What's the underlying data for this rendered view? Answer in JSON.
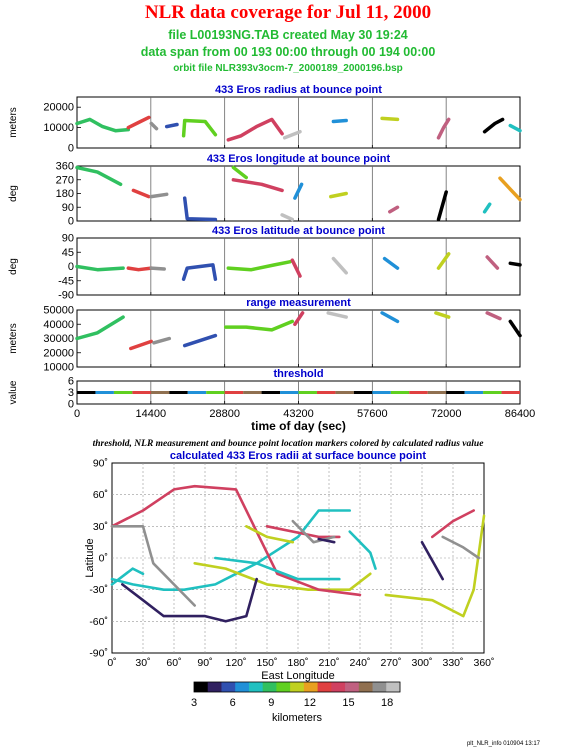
{
  "header": {
    "title": "NLR data coverage for Jul 11, 2000",
    "file_line": "file L00193NG.TAB created May 30 19:24",
    "span_line": "data span from 00 193 00:00 through 00 194 00:00",
    "orbit_line": "orbit file NLR393v3ocm-7_2000189_2000196.bsp"
  },
  "footer": "plt_NLR_info 010904 13:17",
  "colors": {
    "title": "#ff0000",
    "subtitle": "#22bb33",
    "panel_title": "#0000cc",
    "colorscale": [
      "#000000",
      "#302060",
      "#3050b0",
      "#2090d8",
      "#20c0c0",
      "#30c060",
      "#60d020",
      "#c0d020",
      "#e8a020",
      "#e04040",
      "#d04060",
      "#c06080",
      "#907050",
      "#909090",
      "#c0c0c0"
    ]
  },
  "shared_x": {
    "label": "time of day (sec)",
    "ticks": [
      "0",
      "14400",
      "28800",
      "43200",
      "57600",
      "72000",
      "86400"
    ],
    "range": [
      0,
      86400
    ]
  },
  "caption": "threshold, NLR measurement and bounce point location markers colored by calculated radius value",
  "chart_data": [
    {
      "type": "scatter",
      "title": "433 Eros radius at bounce point",
      "ylabel": "meters",
      "yticks": [
        "0",
        "10000",
        "20000"
      ],
      "ylim": [
        0,
        25000
      ],
      "segments": [
        {
          "x": [
            0,
            2500,
            5000,
            7500,
            10000
          ],
          "y": [
            12000,
            14000,
            10500,
            8500,
            9000
          ]
        },
        {
          "x": [
            10000,
            12000,
            14000
          ],
          "y": [
            10000,
            12500,
            15000
          ]
        },
        {
          "x": [
            14500,
            15500
          ],
          "y": [
            12000,
            9500
          ]
        },
        {
          "x": [
            17500,
            19500
          ],
          "y": [
            10500,
            11500
          ]
        },
        {
          "x": [
            20800,
            21000,
            25000,
            27000
          ],
          "y": [
            6000,
            13500,
            13000,
            6500
          ]
        },
        {
          "x": [
            29500,
            32000,
            35000,
            38000,
            40000
          ],
          "y": [
            4000,
            6000,
            10500,
            14000,
            7000
          ]
        },
        {
          "x": [
            40500,
            43500
          ],
          "y": [
            5000,
            8000
          ]
        },
        {
          "x": [
            50000,
            52500
          ],
          "y": [
            13000,
            13500
          ]
        },
        {
          "x": [
            59500,
            62500
          ],
          "y": [
            14500,
            14000
          ]
        },
        {
          "x": [
            70500,
            71500,
            72500
          ],
          "y": [
            5000,
            10000,
            14000
          ]
        },
        {
          "x": [
            79500,
            81500,
            83000
          ],
          "y": [
            8000,
            12000,
            14000
          ]
        },
        {
          "x": [
            84500,
            86400
          ],
          "y": [
            11000,
            8500
          ]
        }
      ]
    },
    {
      "type": "scatter",
      "title": "433 Eros longitude at bounce point",
      "ylabel": "deg",
      "yticks": [
        "0",
        "90",
        "180",
        "270",
        "360"
      ],
      "ylim": [
        0,
        360
      ],
      "segments": [
        {
          "x": [
            0,
            4000,
            8500
          ],
          "y": [
            350,
            320,
            240
          ]
        },
        {
          "x": [
            11000,
            12500,
            14000
          ],
          "y": [
            200,
            180,
            160
          ]
        },
        {
          "x": [
            14500,
            17500
          ],
          "y": [
            160,
            175
          ]
        },
        {
          "x": [
            21000,
            21500,
            27000
          ],
          "y": [
            150,
            15,
            10
          ]
        },
        {
          "x": [
            30500,
            33000
          ],
          "y": [
            350,
            285
          ]
        },
        {
          "x": [
            30500,
            36000,
            40000
          ],
          "y": [
            270,
            240,
            200
          ]
        },
        {
          "x": [
            40000,
            42000
          ],
          "y": [
            40,
            10
          ]
        },
        {
          "x": [
            42500,
            43800
          ],
          "y": [
            150,
            240
          ]
        },
        {
          "x": [
            49500,
            52500
          ],
          "y": [
            160,
            180
          ]
        },
        {
          "x": [
            61000,
            62500
          ],
          "y": [
            60,
            90
          ]
        },
        {
          "x": [
            70500,
            72000
          ],
          "y": [
            10,
            190
          ]
        },
        {
          "x": [
            79500,
            80500
          ],
          "y": [
            60,
            110
          ]
        },
        {
          "x": [
            82500,
            86400
          ],
          "y": [
            280,
            140
          ]
        }
      ]
    },
    {
      "type": "scatter",
      "title": "433 Eros latitude at bounce point",
      "ylabel": "deg",
      "yticks": [
        "-90",
        "-45",
        "0",
        "45",
        "90"
      ],
      "ylim": [
        -90,
        90
      ],
      "segments": [
        {
          "x": [
            0,
            4000,
            9000
          ],
          "y": [
            0,
            -10,
            -5
          ]
        },
        {
          "x": [
            10000,
            12000,
            14500
          ],
          "y": [
            -5,
            -10,
            -5
          ]
        },
        {
          "x": [
            14500,
            17000
          ],
          "y": [
            -5,
            -8
          ]
        },
        {
          "x": [
            20800,
            21500,
            26500,
            27000
          ],
          "y": [
            -40,
            -5,
            5,
            -40
          ]
        },
        {
          "x": [
            29500,
            34000,
            38500,
            41500
          ],
          "y": [
            -5,
            -10,
            5,
            15
          ]
        },
        {
          "x": [
            42000,
            43500
          ],
          "y": [
            20,
            -30
          ]
        },
        {
          "x": [
            50000,
            52500
          ],
          "y": [
            25,
            -20
          ]
        },
        {
          "x": [
            60000,
            62500
          ],
          "y": [
            25,
            -5
          ]
        },
        {
          "x": [
            70500,
            72500
          ],
          "y": [
            -5,
            40
          ]
        },
        {
          "x": [
            80000,
            82000
          ],
          "y": [
            30,
            -5
          ]
        },
        {
          "x": [
            84500,
            86400
          ],
          "y": [
            10,
            5
          ]
        }
      ]
    },
    {
      "type": "scatter",
      "title": "range measurement",
      "ylabel": "meters",
      "yticks": [
        "10000",
        "20000",
        "30000",
        "40000",
        "50000"
      ],
      "ylim": [
        10000,
        50000
      ],
      "segments": [
        {
          "x": [
            0,
            4000,
            9000
          ],
          "y": [
            30000,
            34000,
            45000
          ]
        },
        {
          "x": [
            10500,
            14500
          ],
          "y": [
            23000,
            28000
          ]
        },
        {
          "x": [
            15000,
            18000
          ],
          "y": [
            27000,
            30000
          ]
        },
        {
          "x": [
            21000,
            27000
          ],
          "y": [
            25000,
            32000
          ]
        },
        {
          "x": [
            29000,
            33000,
            38000,
            42000
          ],
          "y": [
            38000,
            38000,
            36000,
            42000
          ]
        },
        {
          "x": [
            42500,
            44000
          ],
          "y": [
            40000,
            48000
          ]
        },
        {
          "x": [
            49000,
            52500
          ],
          "y": [
            48000,
            45000
          ]
        },
        {
          "x": [
            59500,
            62500
          ],
          "y": [
            48000,
            42000
          ]
        },
        {
          "x": [
            70000,
            72500
          ],
          "y": [
            48000,
            45000
          ]
        },
        {
          "x": [
            80000,
            82500
          ],
          "y": [
            48000,
            44000
          ]
        },
        {
          "x": [
            84500,
            86400
          ],
          "y": [
            42000,
            32000
          ]
        }
      ]
    },
    {
      "type": "scatter",
      "title": "threshold",
      "ylabel": "value",
      "yticks": [
        "0",
        "3",
        "6"
      ],
      "ylim": [
        0,
        6
      ],
      "segments": [
        {
          "x": [
            0,
            86400
          ],
          "y": [
            3,
            3
          ]
        }
      ]
    },
    {
      "type": "scatter",
      "title": "calculated 433 Eros radii at surface bounce point",
      "xlabel": "East Longitude",
      "ylabel": "Latitude",
      "xticks": [
        "0˚",
        "30˚",
        "60˚",
        "90˚",
        "120˚",
        "150˚",
        "180˚",
        "210˚",
        "240˚",
        "270˚",
        "300˚",
        "330˚",
        "360˚"
      ],
      "yticks": [
        "-90˚",
        "-60˚",
        "-30˚",
        "0˚",
        "30˚",
        "60˚",
        "90˚"
      ],
      "xlim": [
        0,
        360
      ],
      "ylim": [
        -90,
        90
      ],
      "colorbar": {
        "label": "kilometers",
        "ticks": [
          "3",
          "6",
          "9",
          "12",
          "15",
          "18"
        ],
        "range": [
          3,
          19
        ]
      },
      "segments": [
        {
          "x": [
            0,
            20,
            50,
            70,
            100,
            120,
            140,
            180,
            200,
            230
          ],
          "y": [
            -20,
            -25,
            -30,
            -30,
            -25,
            -15,
            -5,
            20,
            45,
            45
          ]
        },
        {
          "x": [
            80,
            110,
            150,
            190,
            230,
            250
          ],
          "y": [
            -5,
            -10,
            -25,
            -30,
            -30,
            -15
          ]
        },
        {
          "x": [
            0,
            30,
            60,
            80,
            120,
            160,
            200,
            240
          ],
          "y": [
            30,
            45,
            65,
            68,
            65,
            -15,
            -30,
            -35
          ]
        },
        {
          "x": [
            0,
            30,
            40,
            80
          ],
          "y": [
            30,
            30,
            -5,
            -45
          ]
        },
        {
          "x": [
            10,
            30,
            50,
            90,
            110,
            130,
            140
          ],
          "y": [
            -25,
            -40,
            -55,
            -55,
            -60,
            -55,
            -20
          ]
        },
        {
          "x": [
            100,
            140,
            180,
            220
          ],
          "y": [
            0,
            -5,
            -20,
            -20
          ]
        },
        {
          "x": [
            130,
            150,
            175
          ],
          "y": [
            30,
            20,
            15
          ]
        },
        {
          "x": [
            150,
            200,
            220
          ],
          "y": [
            30,
            20,
            20
          ]
        },
        {
          "x": [
            175,
            195,
            215
          ],
          "y": [
            35,
            15,
            20
          ]
        },
        {
          "x": [
            200,
            215
          ],
          "y": [
            18,
            15
          ]
        },
        {
          "x": [
            230,
            250,
            255
          ],
          "y": [
            25,
            5,
            -10
          ]
        },
        {
          "x": [
            265,
            310,
            340,
            350,
            360
          ],
          "y": [
            -35,
            -40,
            -55,
            -30,
            40
          ]
        },
        {
          "x": [
            310,
            330,
            350
          ],
          "y": [
            20,
            35,
            45
          ]
        },
        {
          "x": [
            320,
            340,
            355
          ],
          "y": [
            20,
            10,
            0
          ]
        },
        {
          "x": [
            300,
            320
          ],
          "y": [
            15,
            -20
          ]
        },
        {
          "x": [
            0,
            20,
            30
          ],
          "y": [
            -25,
            -10,
            -15
          ]
        }
      ]
    }
  ]
}
